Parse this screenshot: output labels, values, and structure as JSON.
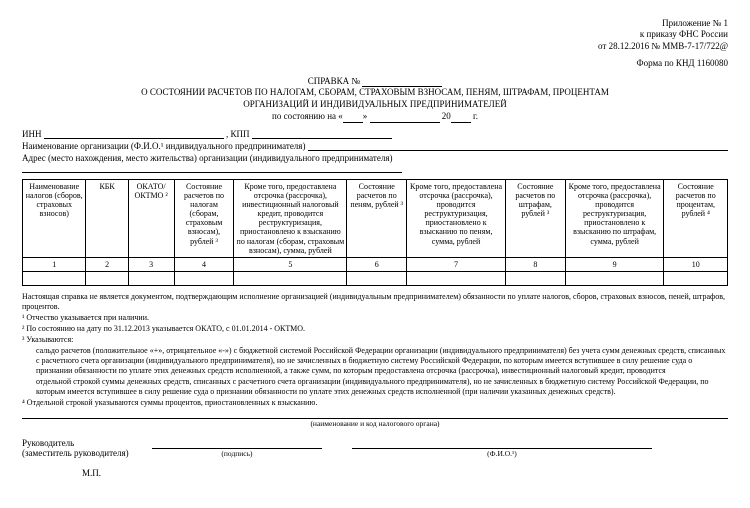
{
  "header_right": {
    "line1": "Приложение № 1",
    "line2": "к приказу ФНС России",
    "line3": "от 28.12.2016 № ММВ-7-17/722@"
  },
  "form_code": "Форма по КНД 1160080",
  "title": {
    "line1": "СПРАВКА №",
    "line2": "О СОСТОЯНИИ РАСЧЕТОВ ПО НАЛОГАМ, СБОРАМ, СТРАХОВЫМ ВЗНОСАМ, ПЕНЯМ, ШТРАФАМ, ПРОЦЕНТАМ",
    "line3": "ОРГАНИЗАЦИЙ И ИНДИВИДУАЛЬНЫХ ПРЕДПРИНИМАТЕЛЕЙ",
    "as_of_prefix": "по состоянию на «",
    "as_of_mid": "»",
    "as_of_year_prefix": "20",
    "as_of_suffix": "г."
  },
  "fields": {
    "inn": "ИНН",
    "kpp": ", КПП",
    "org_name": "Наименование организации (Ф.И.О.¹ индивидуального предпринимателя)",
    "address": "Адрес (место нахождения, место жительства) организации (индивидуального предпринимателя)"
  },
  "table": {
    "widths": [
      "9%",
      "6%",
      "6.5%",
      "8.5%",
      "16%",
      "8.5%",
      "14%",
      "8.5%",
      "14%",
      "9%"
    ],
    "headers": [
      "Наименование налогов (сборов, страховых взносов)",
      "КБК",
      "ОКАТО/ ОКТМО ²",
      "Состояние расчетов по налогам (сборам, страховым взносам), рублей ³",
      "Кроме того, предоставлена отсрочка (рассрочка), инвестиционный налоговый кредит, проводится реструктуризация, приостановлено к взысканию по налогам (сборам, страховым взносам), сумма, рублей",
      "Состояние расчетов по пеням, рублей ³",
      "Кроме того, предоставлена отсрочка (рассрочка), проводится реструктуризация, приостановлено к взысканию по пеням, сумма, рублей",
      "Состояние расчетов по штрафам, рублей ³",
      "Кроме того, предоставлена отсрочка (рассрочка), проводится реструктуризация, приостановлено к взысканию по штрафам, сумма, рублей",
      "Состояние расчетов по процентам, рублей ⁴"
    ],
    "nums": [
      "1",
      "2",
      "3",
      "4",
      "5",
      "6",
      "7",
      "8",
      "9",
      "10"
    ]
  },
  "notes": {
    "intro": "Настоящая справка не является документом, подтверждающим исполнение организацией (индивидуальным предпринимателем) обязанности по уплате налогов, сборов, страховых взносов, пеней, штрафов, процентов.",
    "n1": "¹ Отчество указывается при наличии.",
    "n2": "² По состоянию на дату по 31.12.2013 указывается ОКАТО, с 01.01.2014 - ОКТМО.",
    "n3a": "³ Указываются:",
    "n3b": "сальдо расчетов (положительное «+», отрицательное «-») с бюджетной системой Российской Федерации организации (индивидуального предпринимателя) без учета сумм денежных средств, списанных с расчетного счета организации (индивидуального предпринимателя), но не зачисленных в бюджетную систему Российской Федерации, по которым имеется вступившее в силу решение суда о признании обязанности по уплате этих денежных средств исполненной, а также сумм, по которым предоставлена отсрочка (рассрочка), инвестиционный налоговый кредит, проводится",
    "n3c": "отдельной строкой суммы денежных средств, списанных с расчетного счета организации (индивидуального предпринимателя), но не зачисленных в бюджетную систему Российской Федерации, по которым имеется вступившее в силу решение суда о признании обязанности по уплате этих денежных средств исполненной (при наличии указанных денежных средств).",
    "n4": "⁴ Отдельной строкой указываются суммы процентов, приостановленных к взысканию."
  },
  "signature": {
    "org_caption": "(наименование и код налогового органа)",
    "role1": "Руководитель",
    "role2": "(заместитель руководителя)",
    "sign_caption": "(подпись)",
    "fio_caption": "(Ф.И.О.¹)",
    "mp": "М.П."
  }
}
